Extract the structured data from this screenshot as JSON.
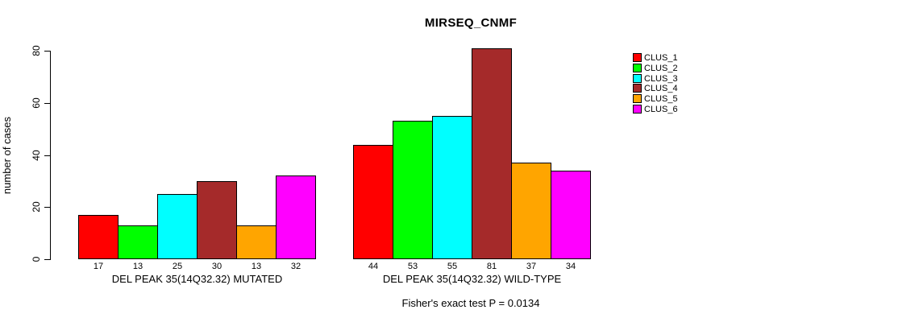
{
  "title": "MIRSEQ_CNMF",
  "footnote": "Fisher's exact test P = 0.0134",
  "y_axis": {
    "label": "number of cases",
    "ticks": [
      0,
      20,
      40,
      60,
      80
    ]
  },
  "chart_data": {
    "type": "bar",
    "title": "MIRSEQ_CNMF",
    "categories": [
      "DEL PEAK 35(14Q32.32) MUTATED",
      "DEL PEAK 35(14Q32.32) WILD-TYPE"
    ],
    "series": [
      {
        "name": "CLUS_1",
        "color": "#FF0000",
        "values": [
          17,
          44
        ]
      },
      {
        "name": "CLUS_2",
        "color": "#00FF00",
        "values": [
          13,
          53
        ]
      },
      {
        "name": "CLUS_3",
        "color": "#00FFFF",
        "values": [
          25,
          55
        ]
      },
      {
        "name": "CLUS_4",
        "color": "#A52A2A",
        "values": [
          30,
          81
        ]
      },
      {
        "name": "CLUS_5",
        "color": "#FFA500",
        "values": [
          13,
          37
        ]
      },
      {
        "name": "CLUS_6",
        "color": "#FF00FF",
        "values": [
          32,
          34
        ]
      }
    ],
    "xlabel": "",
    "ylabel": "number of cases",
    "ylim": [
      0,
      80
    ],
    "yticks": [
      0,
      20,
      40,
      60,
      80
    ],
    "bar_value_labels": true,
    "grid": false,
    "legend_position": "right",
    "annotation": "Fisher's exact test P = 0.0134"
  }
}
